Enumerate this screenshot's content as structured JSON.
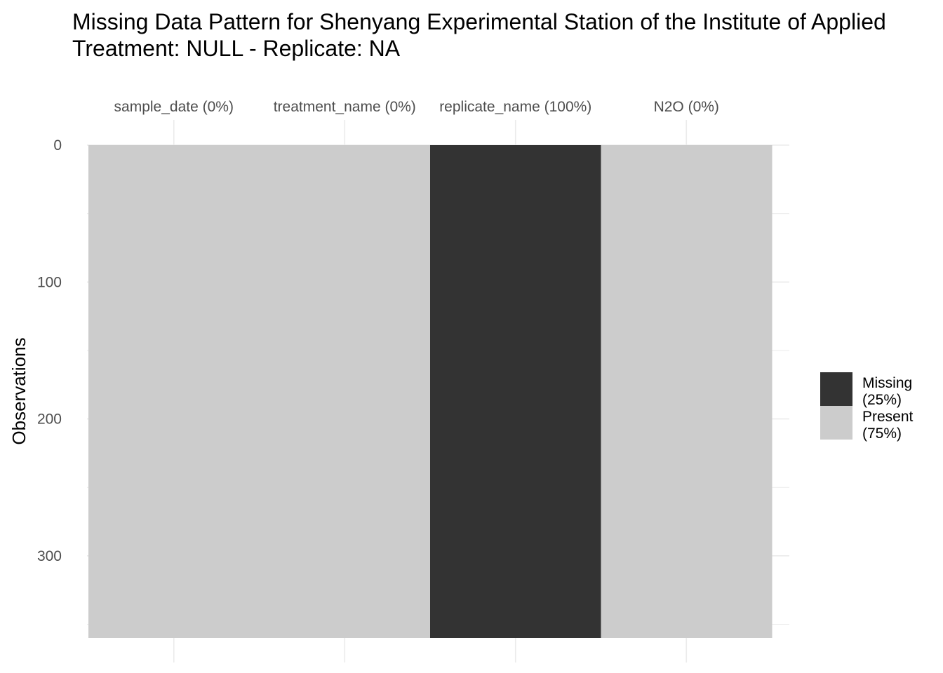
{
  "chart_data": {
    "type": "heatmap",
    "title": "Missing Data Pattern for Shenyang Experimental Station of the Institute of Applied",
    "subtitle": "Treatment: NULL - Replicate: NA",
    "ylabel": "Observations",
    "xlabel": "",
    "ylim": [
      0,
      360
    ],
    "y_ticks": [
      0,
      100,
      200,
      300
    ],
    "x_axis_position": "top",
    "grid": true,
    "columns": [
      {
        "name": "sample_date",
        "label": "sample_date (0%)",
        "missing_pct": 0
      },
      {
        "name": "treatment_name",
        "label": "treatment_name (0%)",
        "missing_pct": 0
      },
      {
        "name": "replicate_name",
        "label": "replicate_name (100%)",
        "missing_pct": 100
      },
      {
        "name": "N2O",
        "label": "N2O (0%)",
        "missing_pct": 0
      }
    ],
    "observations": 360,
    "legend": {
      "placement": "right",
      "entries": [
        {
          "line1": "Missing",
          "line2": "(25%)",
          "color": "#333333"
        },
        {
          "line1": "Present",
          "line2": "(75%)",
          "color": "#cccccc"
        }
      ]
    }
  },
  "colors": {
    "missing": "#333333",
    "present": "#cccccc",
    "grid": "#ebebeb"
  }
}
